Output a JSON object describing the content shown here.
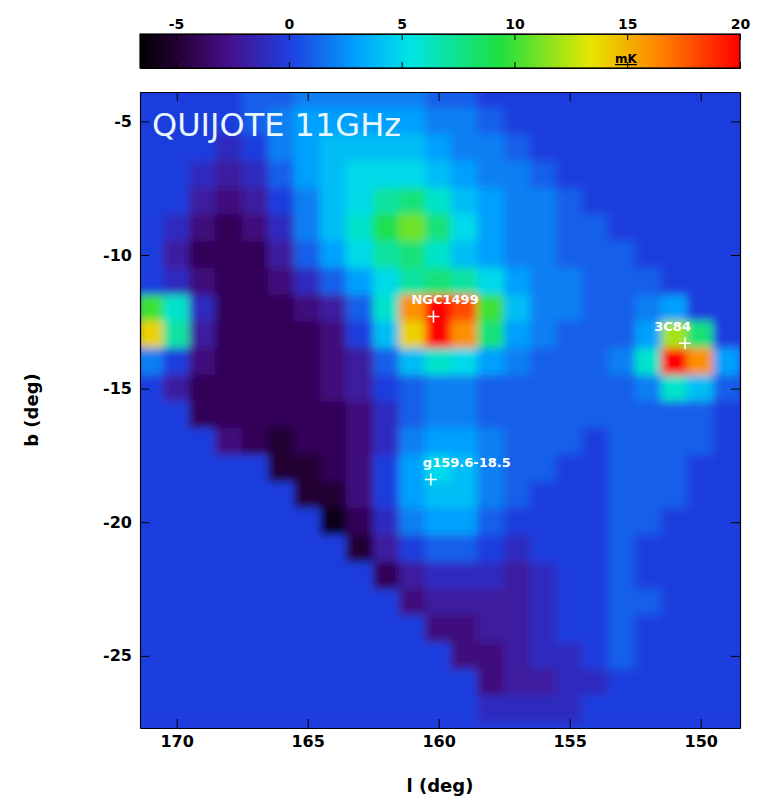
{
  "chart_data": {
    "type": "heatmap",
    "title": "QUIJOTE 11GHz",
    "xlabel": "l (deg)",
    "ylabel": "b (deg)",
    "xlim": [
      171.4,
      148.5
    ],
    "ylim": [
      -27.7,
      -3.9
    ],
    "xticks": [
      170,
      165,
      160,
      155,
      150
    ],
    "yticks": [
      -5,
      -10,
      -15,
      -20,
      -25
    ],
    "x": [
      171,
      170,
      169,
      168,
      167,
      166,
      165,
      164,
      163,
      162,
      161,
      160,
      159,
      158,
      157,
      156,
      155,
      154,
      153,
      152,
      151,
      150,
      149
    ],
    "y": [
      -4,
      -5,
      -6,
      -7,
      -8,
      -9,
      -10,
      -11,
      -12,
      -13,
      -14,
      -15,
      -16,
      -17,
      -18,
      -19,
      -20,
      -21,
      -22,
      -23,
      -24,
      -25,
      -26,
      -27
    ],
    "cells": [
      [
        0,
        0,
        0,
        0,
        1,
        1,
        2,
        2,
        2,
        2,
        2,
        1,
        1,
        0,
        0,
        0,
        0,
        0,
        0,
        0,
        0,
        0,
        0
      ],
      [
        0,
        0,
        0,
        0,
        1,
        2,
        3,
        3,
        3,
        3,
        3,
        2,
        2,
        1,
        0,
        0,
        0,
        0,
        0,
        0,
        0,
        0,
        0
      ],
      [
        0,
        0,
        0,
        -1,
        0,
        2,
        3,
        4,
        4,
        4,
        4,
        3,
        2,
        2,
        1,
        0,
        0,
        0,
        0,
        0,
        0,
        0,
        0
      ],
      [
        0,
        0,
        -1,
        -2,
        -1,
        1,
        3,
        4,
        5,
        5,
        5,
        4,
        3,
        2,
        2,
        1,
        0,
        0,
        0,
        0,
        0,
        0,
        0
      ],
      [
        0,
        0,
        -2,
        -3,
        -2,
        0,
        2,
        4,
        5,
        7,
        8,
        6,
        4,
        3,
        2,
        2,
        1,
        0,
        0,
        0,
        0,
        0,
        0
      ],
      [
        0,
        -1,
        -3,
        -4,
        -3,
        -1,
        2,
        4,
        6,
        9,
        11,
        8,
        5,
        3,
        2,
        2,
        1,
        1,
        0,
        0,
        0,
        0,
        0
      ],
      [
        0,
        -2,
        -4,
        -4,
        -4,
        -2,
        1,
        3,
        5,
        7,
        8,
        6,
        4,
        3,
        2,
        2,
        1,
        1,
        1,
        0,
        0,
        0,
        0
      ],
      [
        0,
        -1,
        -3,
        -4,
        -4,
        -3,
        -1,
        1,
        3,
        5,
        7,
        8,
        7,
        5,
        3,
        2,
        2,
        1,
        1,
        1,
        0,
        0,
        0
      ],
      [
        10,
        6,
        -1,
        -4,
        -4,
        -4,
        -3,
        -2,
        1,
        6,
        16,
        22,
        18,
        10,
        4,
        2,
        2,
        1,
        1,
        2,
        3,
        0,
        0
      ],
      [
        14,
        7,
        -2,
        -4,
        -4,
        -4,
        -4,
        -3,
        0,
        4,
        14,
        20,
        16,
        8,
        3,
        2,
        1,
        1,
        1,
        3,
        12,
        8,
        0
      ],
      [
        2,
        0,
        -3,
        -4,
        -4,
        -4,
        -4,
        -3,
        -2,
        1,
        4,
        6,
        5,
        3,
        2,
        1,
        1,
        1,
        2,
        6,
        22,
        16,
        3
      ],
      [
        0,
        -2,
        -4,
        -4,
        -4,
        -4,
        -4,
        -3,
        -2,
        0,
        1,
        2,
        2,
        1,
        1,
        1,
        1,
        1,
        1,
        2,
        6,
        4,
        1
      ],
      [
        0,
        0,
        -4,
        -4,
        -4,
        -4,
        -4,
        -4,
        -3,
        -1,
        1,
        2,
        2,
        1,
        1,
        1,
        1,
        1,
        1,
        1,
        1,
        1,
        0
      ],
      [
        0,
        0,
        0,
        -3,
        -4,
        -5,
        -4,
        -4,
        -3,
        -1,
        2,
        3,
        3,
        2,
        1,
        1,
        1,
        0,
        1,
        1,
        1,
        1,
        0
      ],
      [
        0,
        0,
        0,
        0,
        0,
        -5,
        -5,
        -4,
        -3,
        0,
        3,
        5,
        4,
        2,
        1,
        1,
        0,
        0,
        1,
        1,
        1,
        0,
        0
      ],
      [
        0,
        0,
        0,
        0,
        0,
        0,
        -5,
        -5,
        -3,
        0,
        3,
        4,
        4,
        2,
        1,
        0,
        0,
        0,
        1,
        1,
        1,
        0,
        0
      ],
      [
        0,
        0,
        0,
        0,
        0,
        0,
        0,
        -6,
        -4,
        -1,
        2,
        3,
        3,
        1,
        0,
        0,
        0,
        0,
        1,
        1,
        0,
        0,
        0
      ],
      [
        0,
        0,
        0,
        0,
        0,
        0,
        0,
        0,
        -5,
        -2,
        0,
        1,
        1,
        0,
        -1,
        0,
        0,
        0,
        1,
        0,
        0,
        0,
        0
      ],
      [
        0,
        0,
        0,
        0,
        0,
        0,
        0,
        0,
        0,
        -4,
        -2,
        -1,
        -1,
        -1,
        -2,
        -1,
        0,
        0,
        1,
        0,
        0,
        0,
        0
      ],
      [
        0,
        0,
        0,
        0,
        0,
        0,
        0,
        0,
        0,
        0,
        -3,
        -2,
        -2,
        -2,
        -2,
        -1,
        0,
        0,
        1,
        1,
        0,
        0,
        0
      ],
      [
        0,
        0,
        0,
        0,
        0,
        0,
        0,
        0,
        0,
        0,
        0,
        -3,
        -3,
        -2,
        -2,
        -1,
        0,
        0,
        1,
        0,
        0,
        0,
        0
      ],
      [
        0,
        0,
        0,
        0,
        0,
        0,
        0,
        0,
        0,
        0,
        0,
        0,
        -3,
        -3,
        -2,
        -1,
        -1,
        0,
        1,
        0,
        0,
        0,
        0
      ],
      [
        0,
        0,
        0,
        0,
        0,
        0,
        0,
        0,
        0,
        0,
        0,
        0,
        0,
        -3,
        -2,
        -2,
        -1,
        -1,
        0,
        0,
        0,
        0,
        0
      ],
      [
        0,
        0,
        0,
        0,
        0,
        0,
        0,
        0,
        0,
        0,
        0,
        0,
        0,
        -1,
        -1,
        -1,
        -1,
        0,
        0,
        0,
        0,
        0,
        0
      ]
    ],
    "colorbar": {
      "range": [
        -6.6,
        20
      ],
      "ticks": [
        -5,
        0,
        5,
        10,
        15,
        20
      ],
      "label": "mK"
    },
    "annotations": [
      {
        "text": "NGC1499",
        "x": 160.2,
        "y": -12.3
      },
      {
        "text": "3C84",
        "x": 150.6,
        "y": -13.3
      },
      {
        "text": "g159.6-18.5",
        "x": 160.3,
        "y": -18.4
      }
    ]
  }
}
